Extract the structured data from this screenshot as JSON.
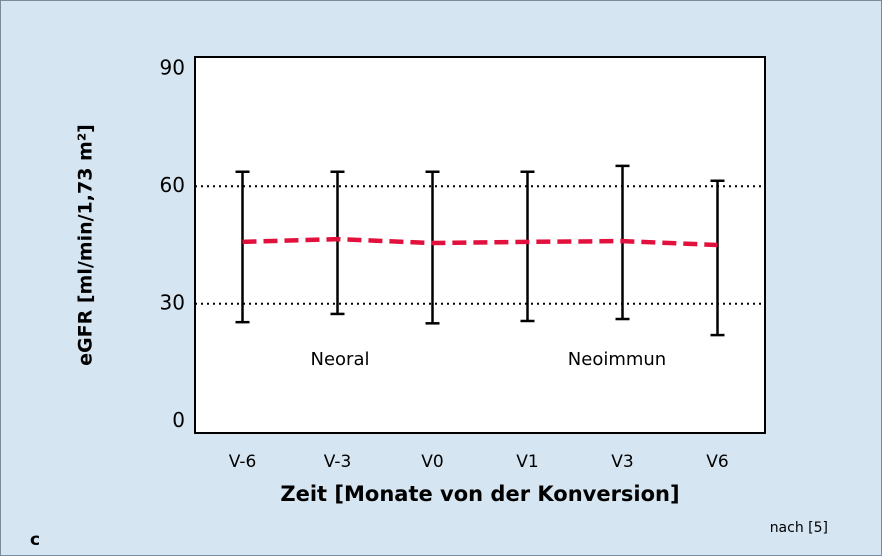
{
  "chart_data": {
    "type": "line",
    "x_label": "Zeit [Monate von der Konversion]",
    "y_label": "eGFR [ml/min/1,73 m²]",
    "categories": [
      "V-6",
      "V-3",
      "V0",
      "V1",
      "V3",
      "V6"
    ],
    "series": [
      {
        "color": "#e2103c",
        "values": [
          45.8,
          46.5,
          45.5,
          45.8,
          46,
          45
        ],
        "upper": [
          63.7,
          63.7,
          63.7,
          63.7,
          65.2,
          61.4
        ],
        "lower": [
          25.3,
          27.4,
          25,
          25.6,
          26.1,
          22
        ]
      }
    ],
    "ylim": [
      -3,
      93
    ],
    "yticks": [
      0,
      30,
      60,
      90
    ],
    "grid_values": [
      30,
      60
    ],
    "annotations": [
      "Neoral",
      "Neoimmun"
    ],
    "panel_label": "c",
    "source": "nach [5]"
  }
}
